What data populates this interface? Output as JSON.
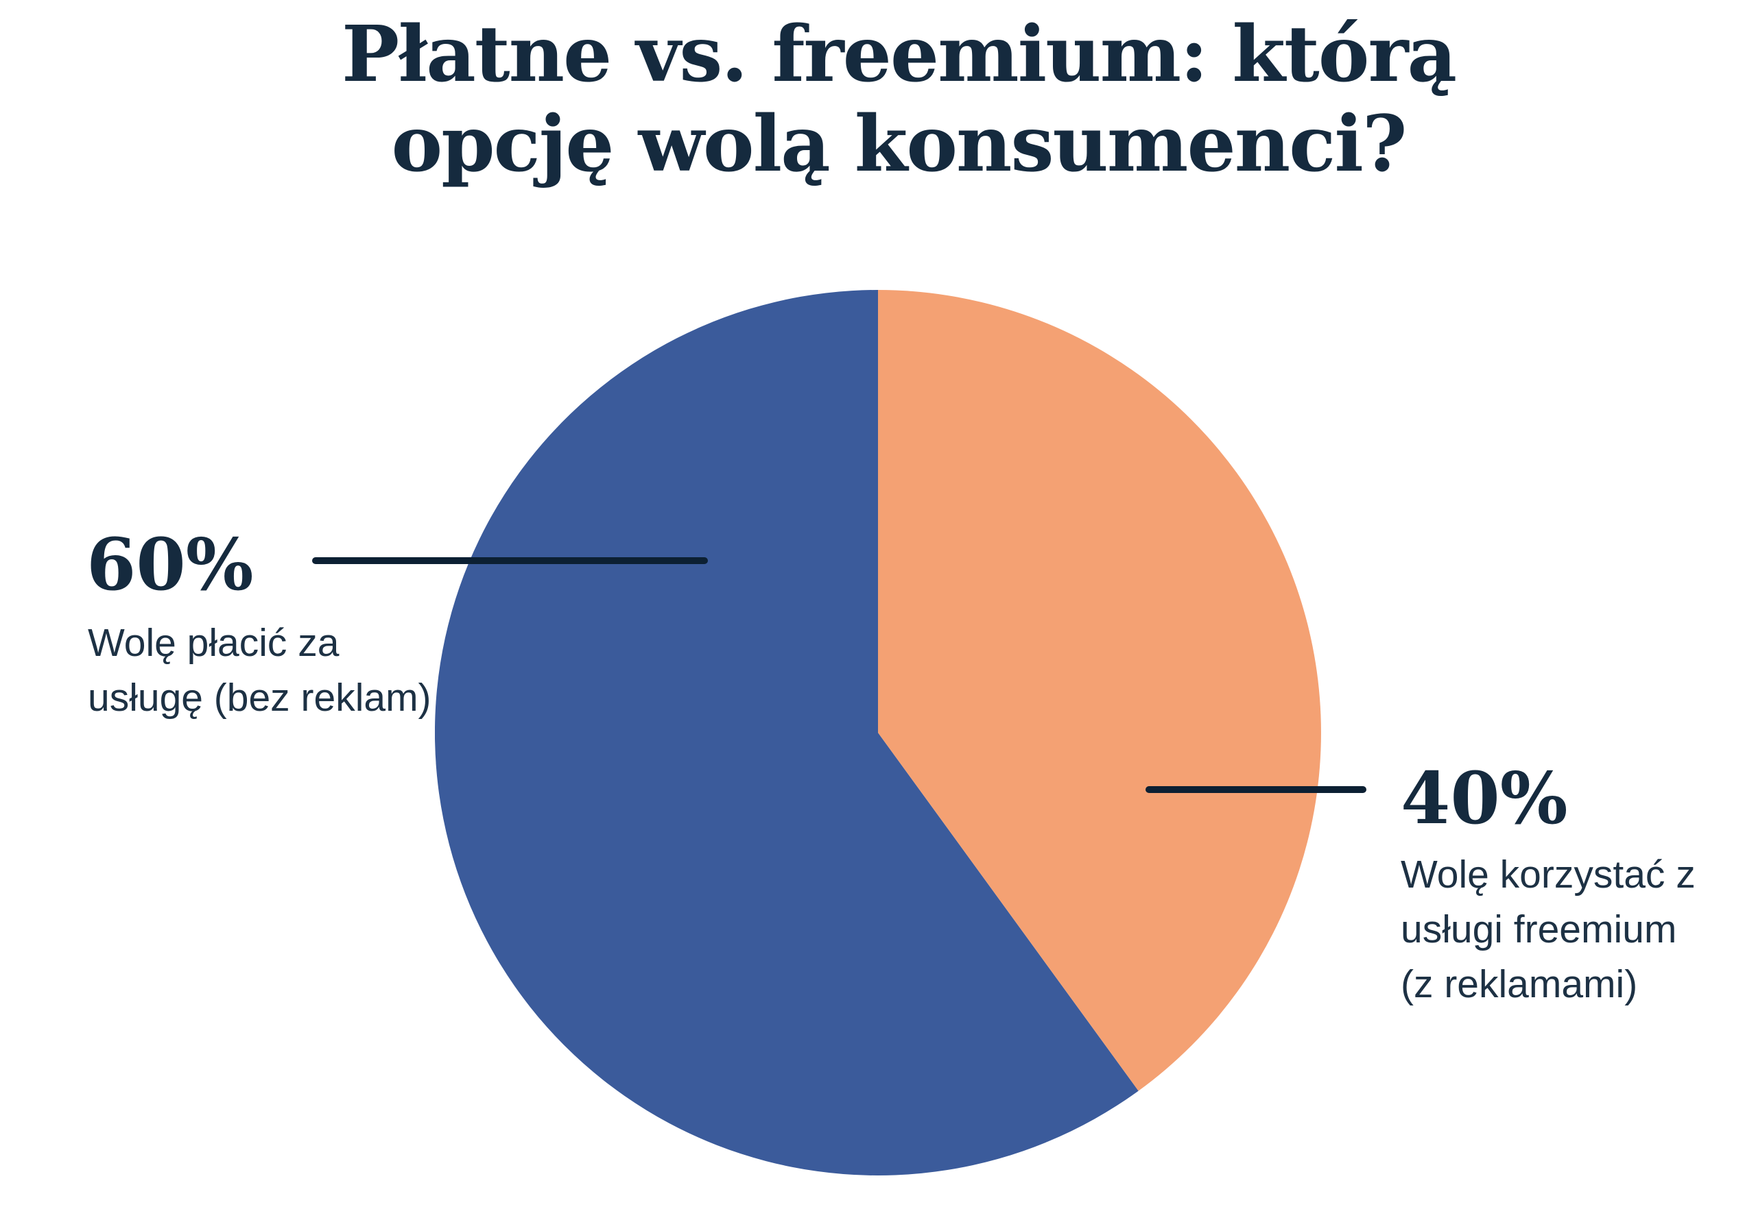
{
  "title": "Płatne vs. freemium: którą opcję wolą konsumenci?",
  "chart_data": {
    "type": "pie",
    "title": "Płatne vs. freemium: którą opcję wolą konsumenci?",
    "value_unit": "%",
    "legend": "none, labels via callout lines",
    "start_angle_deg": 0,
    "clockwise_order_from_top": [
      1,
      0
    ],
    "slices": [
      {
        "label": "Wolę płacić za usługę (bez reklam)",
        "value": 60,
        "percent_label": "60%",
        "color": "#3B5B9B"
      },
      {
        "label": "Wolę korzystać z usługi freemium (z reklamami)",
        "value": 40,
        "percent_label": "40%",
        "color": "#F4A173"
      }
    ]
  },
  "callouts": {
    "left": {
      "percent": "60%",
      "line1": "Wolę płacić za",
      "line2": "usługę (bez reklam)"
    },
    "right": {
      "percent": "40%",
      "line1": "Wolę korzystać z",
      "line2": "usługi freemium",
      "line3": "(z reklamami)"
    }
  },
  "colors": {
    "background": "#FFFFFF",
    "paid_slice": "#3B5B9B",
    "freemium_slice": "#F4A173",
    "title_text": "#152A3E",
    "label_text": "#1D3144",
    "callout_line": "#0C2033"
  }
}
